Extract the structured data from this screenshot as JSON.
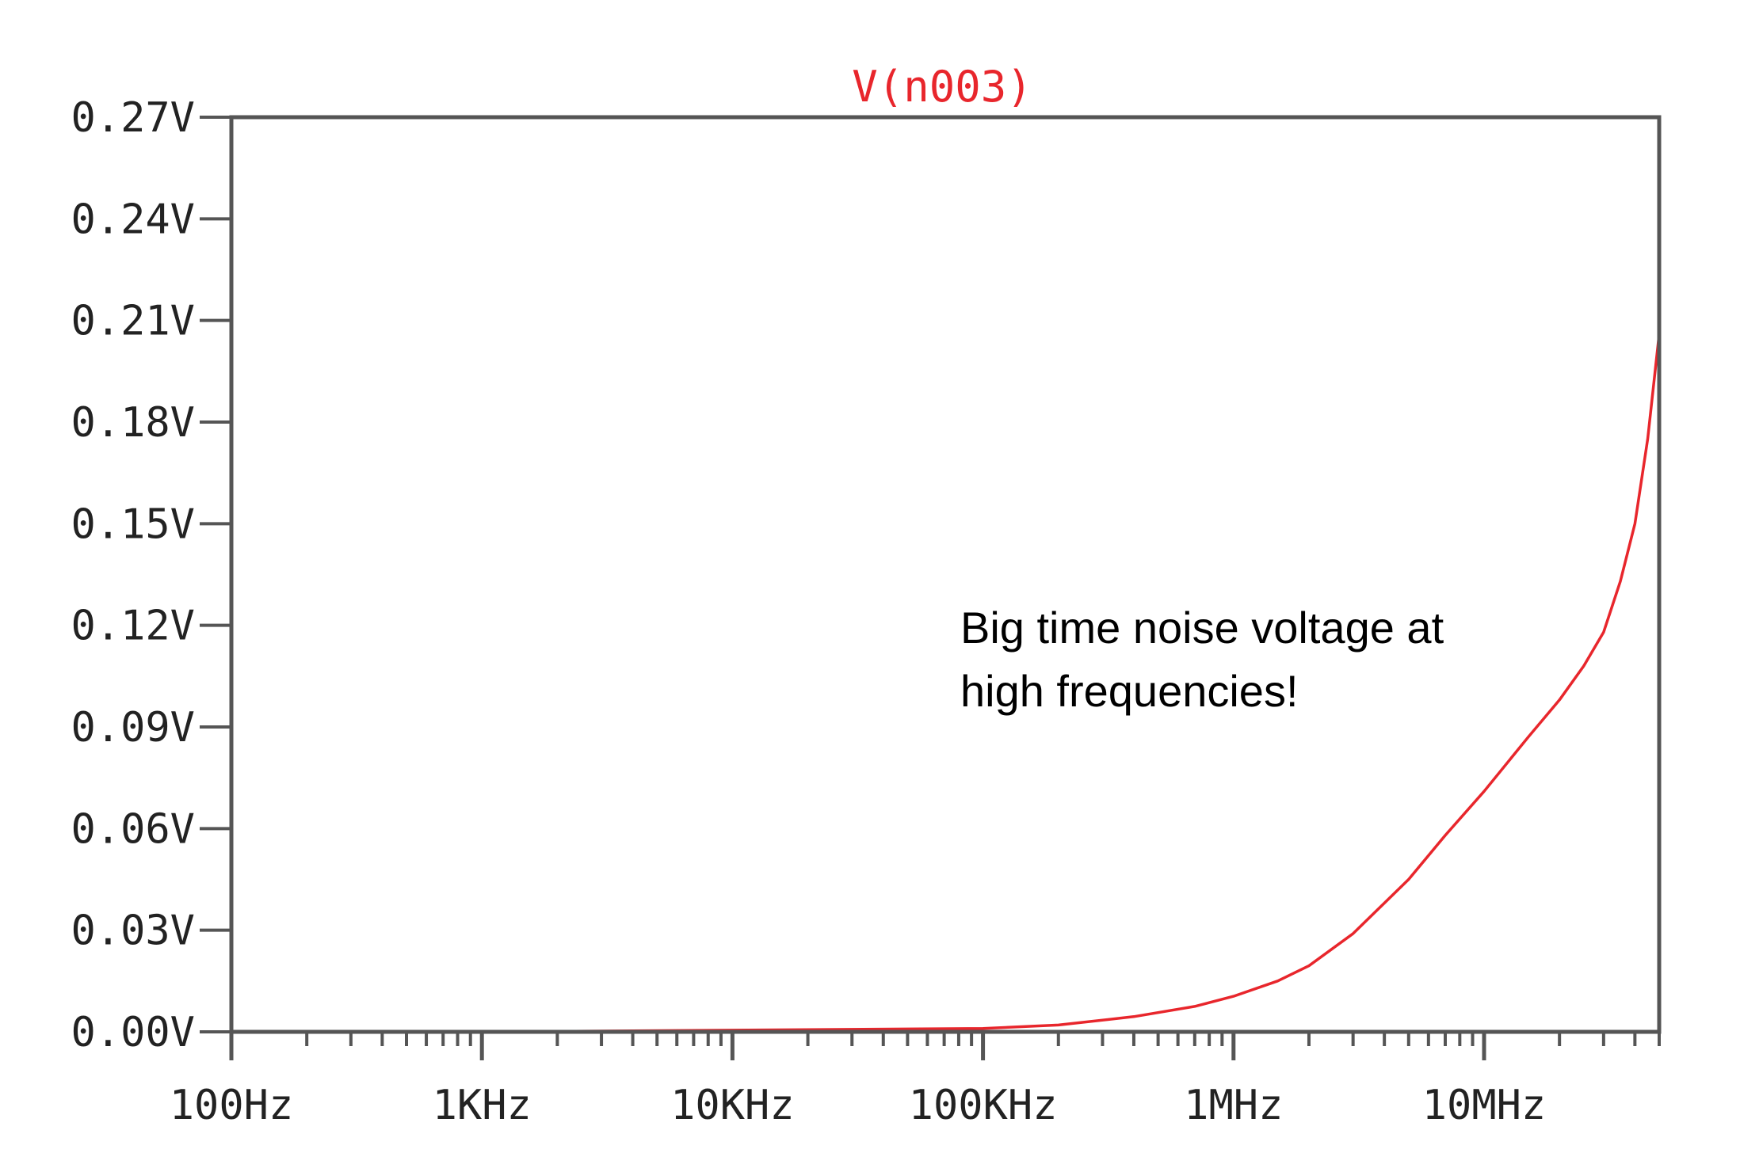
{
  "chart_data": {
    "type": "line",
    "title": "V(n003)",
    "xscale": "log",
    "x_ticks": [
      100,
      1000,
      10000,
      100000,
      1000000,
      10000000
    ],
    "x_tick_labels": [
      "100Hz",
      "1KHz",
      "10KHz",
      "100KHz",
      "1MHz",
      "10MHz"
    ],
    "xlim": [
      100,
      50000000
    ],
    "y_ticks": [
      0,
      0.03,
      0.06,
      0.09,
      0.12,
      0.15,
      0.18,
      0.21,
      0.24,
      0.27
    ],
    "y_tick_labels": [
      "0.00V",
      "0.03V",
      "0.06V",
      "0.09V",
      "0.12V",
      "0.15V",
      "0.18V",
      "0.21V",
      "0.24V",
      "0.27V"
    ],
    "ylim": [
      0,
      0.27
    ],
    "grid": false,
    "annotation": "Big time noise voltage at high frequencies!",
    "series": [
      {
        "name": "V(n003)",
        "color": "#e8262c",
        "x": [
          100,
          1000,
          10000,
          100000,
          200000,
          400000,
          700000,
          1000000,
          1500000,
          2000000,
          3000000,
          5000000,
          7000000,
          10000000,
          15000000,
          20000000,
          25000000,
          30000000,
          35000000,
          40000000,
          45000000,
          50000000
        ],
        "y": [
          0.0,
          0.0,
          0.0005,
          0.001,
          0.002,
          0.0045,
          0.0075,
          0.0105,
          0.015,
          0.0195,
          0.029,
          0.045,
          0.058,
          0.071,
          0.087,
          0.098,
          0.108,
          0.118,
          0.133,
          0.15,
          0.175,
          0.206
        ]
      }
    ]
  }
}
